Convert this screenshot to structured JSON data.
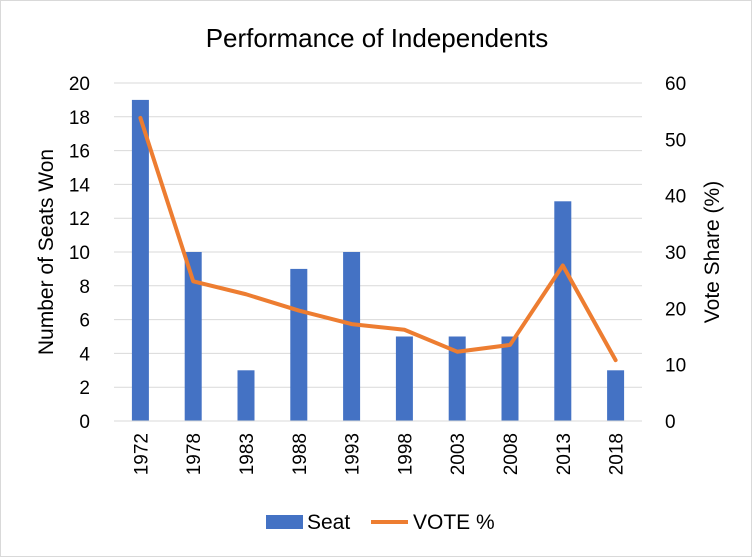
{
  "chart_data": {
    "type": "bar+line",
    "title": "Performance of Independents",
    "categories": [
      "1972",
      "1978",
      "1983",
      "1988",
      "1993",
      "1998",
      "2003",
      "2008",
      "2013",
      "2018"
    ],
    "series": [
      {
        "name": "Seat",
        "kind": "bar",
        "axis": "left",
        "color": "#4472c4",
        "values": [
          19,
          10,
          3,
          9,
          10,
          5,
          5,
          5,
          13,
          3
        ]
      },
      {
        "name": "VOTE %",
        "kind": "line",
        "axis": "right",
        "color": "#ed7d31",
        "values": [
          53.8,
          24.8,
          22.5,
          19.6,
          17.2,
          16.2,
          12.3,
          13.5,
          27.6,
          10.8
        ]
      }
    ],
    "ylabel_left": "Number of Seats Won",
    "ylabel_right": "Vote Share (%)",
    "ylim_left": [
      0,
      20
    ],
    "yticks_left": [
      0,
      2,
      4,
      6,
      8,
      10,
      12,
      14,
      16,
      18,
      20
    ],
    "ylim_right": [
      0,
      60
    ],
    "yticks_right": [
      0,
      10,
      20,
      30,
      40,
      50,
      60
    ],
    "gridlines": true,
    "legend_position": "bottom"
  }
}
